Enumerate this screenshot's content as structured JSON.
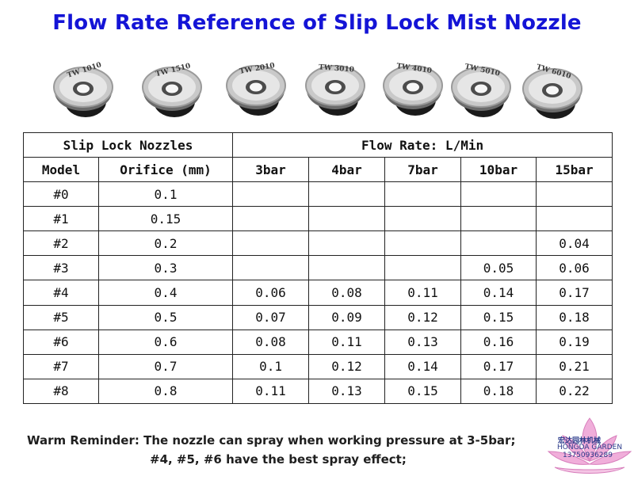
{
  "title": "Flow Rate Reference of Slip Lock Mist Nozzle",
  "nozzle_photos": [
    {
      "label": "TW 1010"
    },
    {
      "label": "TW 1510"
    },
    {
      "label": "TW 2010"
    },
    {
      "label": "TW 3010"
    },
    {
      "label": "TW 4010"
    },
    {
      "label": "TW 5010"
    },
    {
      "label": "TW 6010"
    }
  ],
  "table": {
    "group_left": "Slip Lock Nozzles",
    "group_right": "Flow Rate: L/Min",
    "headers": [
      "Model",
      "Orifice (mm)",
      "3bar",
      "4bar",
      "7bar",
      "10bar",
      "15bar"
    ],
    "rows": [
      [
        "#0",
        "0.1",
        "",
        "",
        "",
        "",
        ""
      ],
      [
        "#1",
        "0.15",
        "",
        "",
        "",
        "",
        ""
      ],
      [
        "#2",
        "0.2",
        "",
        "",
        "",
        "",
        "0.04"
      ],
      [
        "#3",
        "0.3",
        "",
        "",
        "",
        "0.05",
        "0.06"
      ],
      [
        "#4",
        "0.4",
        "0.06",
        "0.08",
        "0.11",
        "0.14",
        "0.17"
      ],
      [
        "#5",
        "0.5",
        "0.07",
        "0.09",
        "0.12",
        "0.15",
        "0.18"
      ],
      [
        "#6",
        "0.6",
        "0.08",
        "0.11",
        "0.13",
        "0.16",
        "0.19"
      ],
      [
        "#7",
        "0.7",
        "0.1",
        "0.12",
        "0.14",
        "0.17",
        "0.21"
      ],
      [
        "#8",
        "0.8",
        "0.11",
        "0.13",
        "0.15",
        "0.18",
        "0.22"
      ]
    ]
  },
  "reminder": {
    "line1": "Warm Reminder: The nozzle can spray when working pressure at 3-5bar;",
    "line2": "#4, #5, #6 have the best spray effect;"
  },
  "watermark": {
    "cn": "宏达园林机械",
    "en": "HONGDA GARDEN",
    "phone": "13750936289"
  },
  "colors": {
    "title": "#1414d6",
    "text": "#111111",
    "border": "#222222",
    "lotus": "#e78fc8"
  }
}
